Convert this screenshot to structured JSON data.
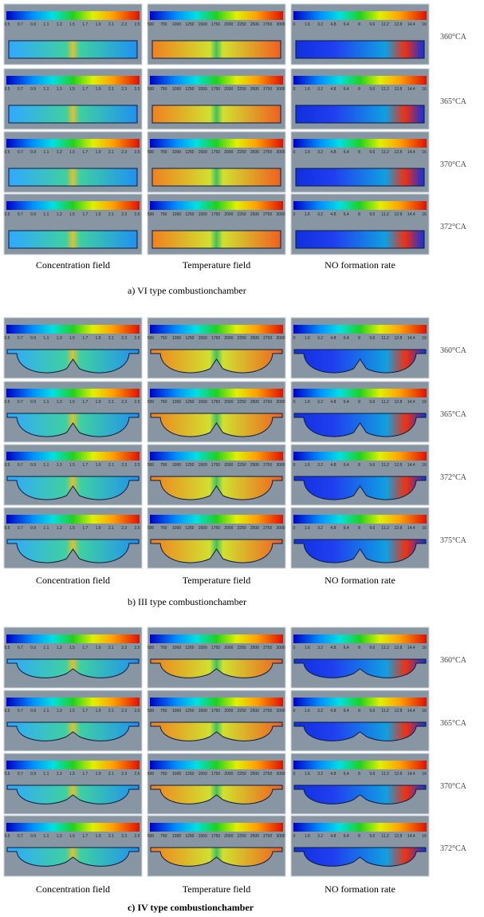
{
  "colorbars": [
    {
      "ticks": [
        "0.5",
        "0.7",
        "0.9",
        "1.1",
        "1.3",
        "1.5",
        "1.7",
        "1.9",
        "2.1",
        "2.3",
        "2.5"
      ]
    },
    {
      "ticks": [
        "500",
        "750",
        "1000",
        "1250",
        "1500",
        "1750",
        "2000",
        "2250",
        "2500",
        "2750",
        "3000"
      ]
    },
    {
      "ticks": [
        "0",
        "1.6",
        "3.2",
        "4.8",
        "6.4",
        "8",
        "9.6",
        "11.2",
        "12.8",
        "14.4",
        "16"
      ]
    }
  ],
  "sections": [
    {
      "caption": "a)    VI type combustionchamber",
      "column_labels": [
        "Concentration field",
        "Temperature field",
        "NO formation rate"
      ],
      "angles": [
        "360°CA",
        "365°CA",
        "370°CA",
        "372°CA"
      ]
    },
    {
      "caption": "b)    III type combustionchamber",
      "column_labels": [
        "Concentration field",
        "Temperature field",
        "NO formation rate"
      ],
      "angles": [
        "360°CA",
        "365°CA",
        "372°CA",
        "375°CA"
      ]
    },
    {
      "caption": "c)    IV type combustionchamber",
      "column_labels": [
        "Concentration field",
        "Temperature field",
        "NO formation rate"
      ],
      "angles": [
        "360°CA",
        "365°CA",
        "370°CA",
        "372°CA"
      ]
    }
  ]
}
